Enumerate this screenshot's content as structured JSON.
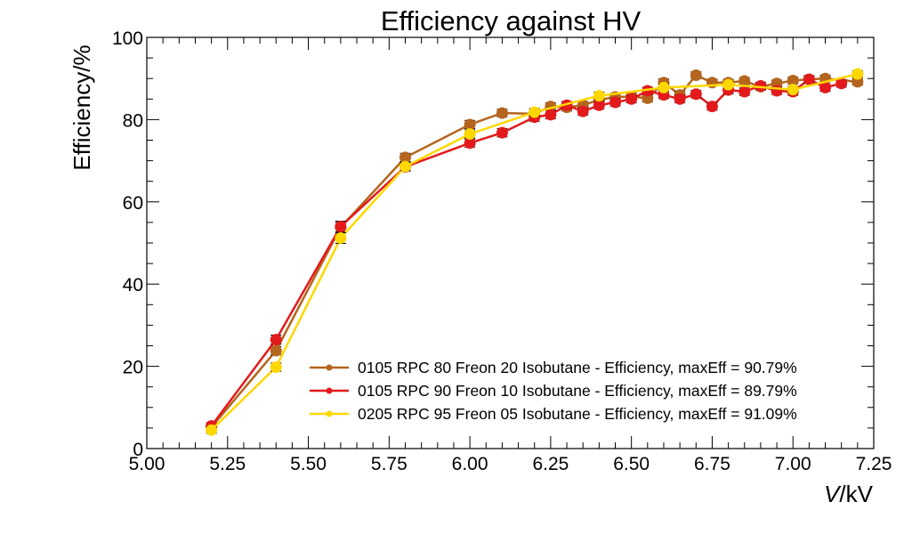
{
  "chart_data": {
    "type": "line",
    "title": "Efficiency against HV",
    "xlabel": "V/kV",
    "xlabel_var": "V",
    "xlabel_unit": "/kV",
    "ylabel": "Efficiency/%",
    "xlim": [
      5.0,
      7.25
    ],
    "ylim": [
      0,
      100
    ],
    "xticks": [
      "5.00",
      "5.25",
      "5.50",
      "5.75",
      "6.00",
      "6.25",
      "6.50",
      "6.75",
      "7.00",
      "7.25"
    ],
    "yticks": [
      "0",
      "20",
      "40",
      "60",
      "80",
      "100"
    ],
    "legend_position": "bottom-right",
    "series": [
      {
        "name": "0105 RPC 80 Freon 20 Isobutane - Efficiency, maxEff = 90.79%",
        "color": "#b5651d",
        "x": [
          5.2,
          5.4,
          5.6,
          5.8,
          6.0,
          6.1,
          6.2,
          6.25,
          6.3,
          6.35,
          6.4,
          6.45,
          6.5,
          6.55,
          6.6,
          6.65,
          6.7,
          6.75,
          6.8,
          6.85,
          6.9,
          6.95,
          7.0,
          7.05,
          7.1,
          7.2
        ],
        "y": [
          5.2,
          23.8,
          53.8,
          70.8,
          78.8,
          81.6,
          81.4,
          83.2,
          83.0,
          83.5,
          84.8,
          85.5,
          85.6,
          85.2,
          89.0,
          86.0,
          90.8,
          89.0,
          89.0,
          89.4,
          88.0,
          88.8,
          89.5,
          89.8,
          90.0,
          89.2
        ],
        "err": [
          0.8,
          1.0,
          1.2,
          1.0,
          1.0,
          0.9,
          0.9,
          0.9,
          0.9,
          0.9,
          0.9,
          0.9,
          0.9,
          0.9,
          0.9,
          0.9,
          0.8,
          0.8,
          0.8,
          0.8,
          0.8,
          0.8,
          0.8,
          0.8,
          0.8,
          0.8
        ]
      },
      {
        "name": "0105 RPC 90 Freon 10 Isobutane - Efficiency, maxEff = 89.79%",
        "color": "#e31a1c",
        "x": [
          5.2,
          5.4,
          5.6,
          5.8,
          6.0,
          6.1,
          6.2,
          6.25,
          6.3,
          6.35,
          6.4,
          6.45,
          6.5,
          6.55,
          6.6,
          6.65,
          6.7,
          6.75,
          6.8,
          6.85,
          6.9,
          6.95,
          7.0,
          7.05,
          7.1,
          7.15
        ],
        "y": [
          5.5,
          26.5,
          54.0,
          68.5,
          74.3,
          76.8,
          80.6,
          81.2,
          83.5,
          82.0,
          83.5,
          84.2,
          85.0,
          87.0,
          86.0,
          85.0,
          86.2,
          83.2,
          87.2,
          86.8,
          88.2,
          87.0,
          86.8,
          89.8,
          87.8,
          88.8
        ],
        "err": [
          0.8,
          1.1,
          1.3,
          1.0,
          1.0,
          1.0,
          1.0,
          1.0,
          0.9,
          0.9,
          0.9,
          0.9,
          0.9,
          0.9,
          0.9,
          0.9,
          0.9,
          0.9,
          0.9,
          0.9,
          0.9,
          0.9,
          0.9,
          0.9,
          0.9,
          0.9
        ]
      },
      {
        "name": "0205 RPC 95 Freon 05 Isobutane - Efficiency, maxEff = 91.09%",
        "color": "#ffd700",
        "x": [
          5.2,
          5.4,
          5.6,
          5.8,
          6.0,
          6.2,
          6.4,
          6.6,
          6.8,
          7.0,
          7.2
        ],
        "y": [
          4.5,
          19.8,
          51.2,
          68.6,
          76.5,
          81.8,
          85.8,
          87.8,
          88.5,
          87.3,
          91.1
        ],
        "err": [
          0.8,
          1.0,
          1.3,
          1.0,
          1.0,
          0.9,
          0.9,
          0.9,
          0.8,
          0.8,
          0.8
        ]
      }
    ]
  }
}
